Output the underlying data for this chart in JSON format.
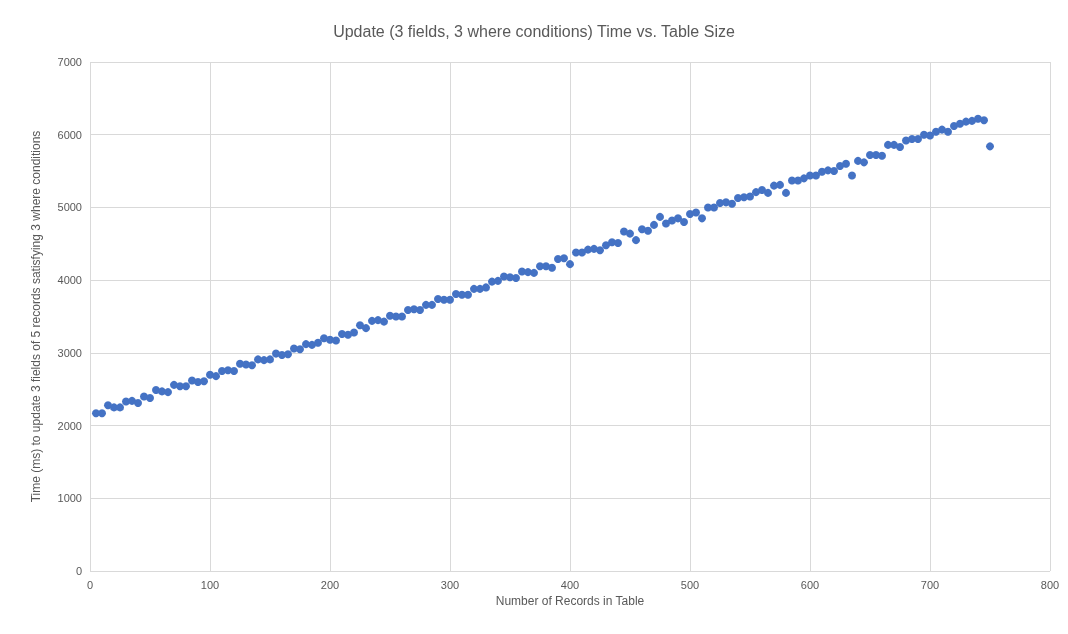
{
  "chart_data": {
    "type": "scatter",
    "title": "Update (3 fields, 3 where conditions) Time vs. Table Size",
    "xlabel": "Number of Records in Table",
    "ylabel": "Time (ms) to update 3 fields of 5 records satisfying 3 where conditions",
    "x": [
      5,
      10,
      15,
      20,
      25,
      30,
      35,
      40,
      45,
      50,
      55,
      60,
      65,
      70,
      75,
      80,
      85,
      90,
      95,
      100,
      105,
      110,
      115,
      120,
      125,
      130,
      135,
      140,
      145,
      150,
      155,
      160,
      165,
      170,
      175,
      180,
      185,
      190,
      195,
      200,
      205,
      210,
      215,
      220,
      225,
      230,
      235,
      240,
      245,
      250,
      255,
      260,
      265,
      270,
      275,
      280,
      285,
      290,
      295,
      300,
      305,
      310,
      315,
      320,
      325,
      330,
      335,
      340,
      345,
      350,
      355,
      360,
      365,
      370,
      375,
      380,
      385,
      390,
      395,
      400,
      405,
      410,
      415,
      420,
      425,
      430,
      435,
      440,
      445,
      450,
      455,
      460,
      465,
      470,
      475,
      480,
      485,
      490,
      495,
      500,
      505,
      510,
      515,
      520,
      525,
      530,
      535,
      540,
      545,
      550,
      555,
      560,
      565,
      570,
      575,
      580,
      585,
      590,
      595,
      600,
      605,
      610,
      615,
      620,
      625,
      630,
      635,
      640,
      645,
      650,
      655,
      660,
      665,
      670,
      675,
      680,
      685,
      690,
      695,
      700,
      705,
      710,
      715,
      720,
      725,
      730,
      735,
      740,
      745,
      750
    ],
    "values": [
      2170,
      2170,
      2280,
      2250,
      2250,
      2330,
      2340,
      2310,
      2400,
      2380,
      2490,
      2470,
      2460,
      2560,
      2540,
      2540,
      2620,
      2600,
      2610,
      2700,
      2680,
      2750,
      2760,
      2750,
      2850,
      2840,
      2830,
      2910,
      2900,
      2910,
      2990,
      2970,
      2980,
      3060,
      3050,
      3120,
      3110,
      3140,
      3200,
      3180,
      3170,
      3260,
      3250,
      3280,
      3380,
      3340,
      3440,
      3450,
      3430,
      3510,
      3500,
      3500,
      3590,
      3600,
      3590,
      3660,
      3660,
      3740,
      3730,
      3730,
      3810,
      3800,
      3800,
      3880,
      3880,
      3900,
      3980,
      3990,
      4050,
      4040,
      4030,
      4120,
      4110,
      4100,
      4190,
      4190,
      4170,
      4290,
      4300,
      4220,
      4380,
      4380,
      4420,
      4430,
      4410,
      4480,
      4520,
      4510,
      4670,
      4640,
      4550,
      4700,
      4680,
      4760,
      4870,
      4780,
      4820,
      4850,
      4800,
      4910,
      4930,
      4850,
      5000,
      5000,
      5060,
      5070,
      5050,
      5130,
      5140,
      5150,
      5210,
      5240,
      5200,
      5300,
      5310,
      5200,
      5370,
      5370,
      5400,
      5440,
      5440,
      5490,
      5510,
      5500,
      5570,
      5600,
      5440,
      5640,
      5620,
      5720,
      5720,
      5710,
      5860,
      5860,
      5830,
      5920,
      5940,
      5940,
      6000,
      5990,
      6040,
      6070,
      6040,
      6120,
      6150,
      6180,
      6190,
      6220,
      6200,
      5840
    ],
    "color": "#4472c4",
    "marker": "circle",
    "xlim": [
      0,
      800
    ],
    "xticks": [
      0,
      100,
      200,
      300,
      400,
      500,
      600,
      700,
      800
    ],
    "ylim": [
      0,
      7000
    ],
    "yticks": [
      0,
      1000,
      2000,
      3000,
      4000,
      5000,
      6000,
      7000
    ],
    "grid": true
  }
}
